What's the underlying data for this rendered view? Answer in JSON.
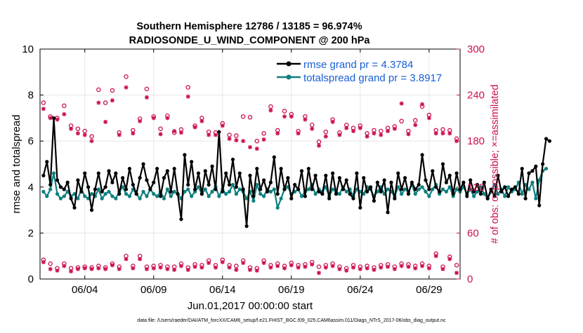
{
  "chart_data": {
    "type": "line",
    "title_line1": "Southern Hemisphere 12786 / 13185 = 96.974%",
    "title_line2": "RADIOSONDE_U_WIND_COMPONENT @ 200 hPa",
    "xlabel": "Jun.01,2017 00:00:00 start",
    "ylabel_left": "rmse and totalspread",
    "ylabel_right": "# of obs: o=possible; ×=assimilated",
    "footnote": "data file: /Users/raeder/DAI/ATM_forcXX/CAM6_setup/f.e21.FHIST_BGC.f09_025.CAM6assim.011/Diags_NTrS_2017-06/obs_diag_output.nc",
    "x_tick_labels": [
      "06/04",
      "06/09",
      "06/14",
      "06/19",
      "06/24",
      "06/29"
    ],
    "x_tick_values": [
      4,
      9,
      14,
      19,
      24,
      29
    ],
    "xlim": [
      0.75,
      31.25
    ],
    "left_axis": {
      "ylim": [
        0,
        10
      ],
      "ticks": [
        0,
        2,
        4,
        6,
        8,
        10
      ],
      "tick_labels": [
        "0",
        "2",
        "4",
        "6",
        "8",
        "10"
      ]
    },
    "right_axis": {
      "ylim": [
        0,
        300
      ],
      "ticks": [
        0,
        60,
        120,
        180,
        240,
        300
      ],
      "tick_labels": [
        "0",
        "60",
        "120",
        "180",
        "240",
        "300"
      ]
    },
    "colors": {
      "rmse": "#000000",
      "totalspread": "#0f7f7f",
      "obs": "#cc0f4f",
      "legend_text": "#1a5fd6",
      "axis": "#000000"
    },
    "legend": {
      "position": "top-right",
      "entries": [
        "rmse grand pr = 4.3784",
        "totalspread grand pr = 3.8917"
      ]
    },
    "series": [
      {
        "name": "rmse",
        "step": 0.25,
        "x0": 1.0,
        "values": [
          4.5,
          5.1,
          4.1,
          7.0,
          4.3,
          4.0,
          3.9,
          4.2,
          3.5,
          3.1,
          4.3,
          3.8,
          4.6,
          4.0,
          3.0,
          3.9,
          4.6,
          3.8,
          4.0,
          4.7,
          4.2,
          4.6,
          3.7,
          4.4,
          3.9,
          4.8,
          4.1,
          3.7,
          4.4,
          5.0,
          4.3,
          3.9,
          4.2,
          4.8,
          3.6,
          4.4,
          4.7,
          3.8,
          4.8,
          3.7,
          2.6,
          5.4,
          4.1,
          5.1,
          3.9,
          4.6,
          3.7,
          4.7,
          4.1,
          4.9,
          3.9,
          6.4,
          3.8,
          4.6,
          4.1,
          5.2,
          4.0,
          4.6,
          3.9,
          2.3,
          4.5,
          3.6,
          4.8,
          3.9,
          4.3,
          3.8,
          4.2,
          5.3,
          3.7,
          4.8,
          3.9,
          4.4,
          3.5,
          4.1,
          3.9,
          4.7,
          3.6,
          4.8,
          3.9,
          4.5,
          3.8,
          3.7,
          4.5,
          3.5,
          4.6,
          3.7,
          4.4,
          3.9,
          4.3,
          3.7,
          3.5,
          4.6,
          3.1,
          4.4,
          3.8,
          4.0,
          3.4,
          4.2,
          3.8,
          4.3,
          2.9,
          4.2,
          3.5,
          4.6,
          3.9,
          4.4,
          3.7,
          4.2,
          3.9,
          4.1,
          5.4,
          4.3,
          3.9,
          4.7,
          4.0,
          3.8,
          5.0,
          4.2,
          4.5,
          3.7,
          4.6,
          3.9,
          4.2,
          3.6,
          4.3,
          3.8,
          4.1,
          3.7,
          4.2,
          3.5,
          3.9,
          3.6,
          4.5,
          3.8,
          4.0,
          3.6,
          3.9,
          4.0,
          3.7,
          4.8,
          3.5,
          4.6,
          4.7,
          4.9,
          3.2,
          5.0,
          6.1,
          6.0
        ]
      },
      {
        "name": "totalspread",
        "step": 0.25,
        "x0": 1.0,
        "values": [
          3.8,
          3.6,
          3.9,
          4.6,
          3.7,
          3.5,
          3.6,
          3.8,
          3.6,
          3.7,
          3.5,
          3.9,
          3.6,
          3.5,
          3.7,
          3.6,
          3.9,
          3.5,
          3.7,
          3.8,
          3.6,
          3.5,
          3.8,
          4.0,
          3.7,
          3.6,
          3.9,
          3.7,
          3.5,
          3.8,
          3.6,
          3.9,
          3.7,
          3.6,
          3.8,
          3.5,
          3.9,
          3.6,
          3.8,
          3.7,
          3.5,
          3.8,
          3.9,
          3.6,
          3.8,
          4.0,
          3.7,
          3.9,
          3.6,
          3.8,
          4.0,
          3.6,
          3.9,
          3.7,
          3.8,
          4.1,
          3.7,
          3.9,
          3.8,
          3.5,
          3.8,
          3.4,
          4.1,
          3.7,
          3.6,
          3.9,
          3.8,
          3.9,
          3.1,
          3.5,
          3.9,
          4.0,
          3.7,
          3.8,
          3.9,
          3.6,
          3.8,
          3.9,
          4.1,
          3.7,
          3.9,
          3.8,
          4.0,
          3.6,
          3.9,
          3.8,
          3.7,
          4.0,
          3.8,
          3.9,
          3.6,
          3.9,
          3.8,
          3.7,
          4.0,
          3.9,
          3.6,
          3.8,
          4.0,
          3.7,
          3.9,
          3.8,
          3.6,
          4.0,
          3.7,
          3.9,
          3.8,
          4.1,
          3.7,
          3.9,
          4.0,
          3.8,
          3.6,
          3.9,
          4.1,
          3.7,
          3.9,
          3.8,
          4.0,
          3.6,
          3.9,
          3.8,
          4.0,
          3.7,
          3.9,
          3.6,
          3.8,
          4.0,
          3.7,
          3.5,
          3.8,
          4.1,
          3.7,
          3.9,
          3.6,
          4.0,
          3.8,
          3.9,
          4.2,
          3.7,
          4.1,
          3.9,
          4.2,
          3.5,
          4.3,
          4.7,
          4.8
        ]
      }
    ],
    "obs_possible": {
      "name": "possible (o)",
      "points": [
        [
          1.0,
          230
        ],
        [
          1.5,
          212
        ],
        [
          2.0,
          210
        ],
        [
          2.5,
          226
        ],
        [
          3.0,
          200
        ],
        [
          3.5,
          196
        ],
        [
          4.0,
          193
        ],
        [
          4.5,
          186
        ],
        [
          5.0,
          247
        ],
        [
          5.5,
          230
        ],
        [
          6.0,
          246
        ],
        [
          6.5,
          191
        ],
        [
          7.0,
          264
        ],
        [
          7.5,
          194
        ],
        [
          8.0,
          209
        ],
        [
          8.5,
          248
        ],
        [
          9.0,
          212
        ],
        [
          9.5,
          196
        ],
        [
          10.0,
          213
        ],
        [
          10.5,
          191
        ],
        [
          11.0,
          195
        ],
        [
          11.5,
          250
        ],
        [
          12.0,
          200
        ],
        [
          12.5,
          210
        ],
        [
          13.0,
          192
        ],
        [
          13.5,
          191
        ],
        [
          14.0,
          203
        ],
        [
          14.5,
          188
        ],
        [
          15.0,
          187
        ],
        [
          15.5,
          212
        ],
        [
          16.0,
          211
        ],
        [
          16.5,
          180
        ],
        [
          17.0,
          190
        ],
        [
          17.5,
          225
        ],
        [
          18.0,
          194
        ],
        [
          18.5,
          219
        ],
        [
          19.0,
          215
        ],
        [
          19.5,
          193
        ],
        [
          20.0,
          212
        ],
        [
          20.5,
          201
        ],
        [
          21.0,
          179
        ],
        [
          21.5,
          192
        ],
        [
          22.0,
          208
        ],
        [
          22.5,
          191
        ],
        [
          23.0,
          201
        ],
        [
          23.5,
          197
        ],
        [
          24.0,
          200
        ],
        [
          24.5,
          190
        ],
        [
          25.0,
          194
        ],
        [
          25.5,
          193
        ],
        [
          26.0,
          197
        ],
        [
          26.5,
          199
        ],
        [
          27.0,
          206
        ],
        [
          27.5,
          193
        ],
        [
          28.0,
          207
        ],
        [
          28.5,
          225
        ],
        [
          29.0,
          214
        ],
        [
          29.5,
          194
        ],
        [
          30.0,
          195
        ],
        [
          30.5,
          194
        ],
        [
          31.0,
          183
        ],
        [
          1.0,
          25
        ],
        [
          1.5,
          20
        ],
        [
          2.0,
          14
        ],
        [
          2.5,
          20
        ],
        [
          3.0,
          14
        ],
        [
          3.5,
          15
        ],
        [
          4.0,
          16
        ],
        [
          4.5,
          15
        ],
        [
          5.0,
          17
        ],
        [
          5.5,
          15
        ],
        [
          6.0,
          20
        ],
        [
          6.5,
          16
        ],
        [
          7.0,
          30
        ],
        [
          7.5,
          17
        ],
        [
          8.0,
          30
        ],
        [
          8.5,
          16
        ],
        [
          9.0,
          17
        ],
        [
          9.5,
          18
        ],
        [
          10.0,
          16
        ],
        [
          10.5,
          16
        ],
        [
          11.0,
          20
        ],
        [
          11.5,
          15
        ],
        [
          12.0,
          19
        ],
        [
          12.5,
          18
        ],
        [
          13.0,
          24
        ],
        [
          13.5,
          18
        ],
        [
          14.0,
          25
        ],
        [
          14.5,
          18
        ],
        [
          15.0,
          17
        ],
        [
          15.5,
          24
        ],
        [
          16.0,
          15
        ],
        [
          16.5,
          14
        ],
        [
          17.0,
          24
        ],
        [
          17.5,
          18
        ],
        [
          18.0,
          20
        ],
        [
          18.5,
          17
        ],
        [
          19.0,
          21
        ],
        [
          19.5,
          18
        ],
        [
          20.0,
          19
        ],
        [
          20.5,
          22
        ],
        [
          21.0,
          16
        ],
        [
          21.5,
          18
        ],
        [
          22.0,
          20
        ],
        [
          22.5,
          16
        ],
        [
          23.0,
          14
        ],
        [
          23.5,
          18
        ],
        [
          24.0,
          16
        ],
        [
          24.5,
          17
        ],
        [
          25.0,
          15
        ],
        [
          25.5,
          18
        ],
        [
          26.0,
          19
        ],
        [
          26.5,
          16
        ],
        [
          27.0,
          20
        ],
        [
          27.5,
          19
        ],
        [
          28.0,
          17
        ],
        [
          28.5,
          20
        ],
        [
          29.0,
          17
        ],
        [
          29.5,
          33
        ],
        [
          30.0,
          16
        ],
        [
          30.5,
          29
        ],
        [
          31.0,
          18
        ]
      ]
    },
    "obs_assimilated": {
      "name": "assimilated (×)",
      "points": [
        [
          1.0,
          222
        ],
        [
          1.5,
          210
        ],
        [
          2.0,
          208
        ],
        [
          2.5,
          215
        ],
        [
          3.0,
          196
        ],
        [
          3.5,
          190
        ],
        [
          4.0,
          188
        ],
        [
          4.5,
          180
        ],
        [
          5.0,
          230
        ],
        [
          5.5,
          205
        ],
        [
          6.0,
          233
        ],
        [
          6.5,
          188
        ],
        [
          7.0,
          250
        ],
        [
          7.5,
          190
        ],
        [
          8.0,
          206
        ],
        [
          8.5,
          237
        ],
        [
          9.0,
          210
        ],
        [
          9.5,
          189
        ],
        [
          10.0,
          210
        ],
        [
          10.5,
          193
        ],
        [
          11.0,
          191
        ],
        [
          11.5,
          238
        ],
        [
          12.0,
          198
        ],
        [
          12.5,
          206
        ],
        [
          13.0,
          188
        ],
        [
          13.5,
          188
        ],
        [
          14.0,
          200
        ],
        [
          14.5,
          183
        ],
        [
          15.0,
          181
        ],
        [
          15.5,
          180
        ],
        [
          16.0,
          172
        ],
        [
          16.5,
          170
        ],
        [
          17.0,
          182
        ],
        [
          17.5,
          220
        ],
        [
          18.0,
          190
        ],
        [
          18.5,
          212
        ],
        [
          19.0,
          212
        ],
        [
          19.5,
          190
        ],
        [
          20.0,
          208
        ],
        [
          20.5,
          196
        ],
        [
          21.0,
          174
        ],
        [
          21.5,
          186
        ],
        [
          22.0,
          205
        ],
        [
          22.5,
          188
        ],
        [
          23.0,
          197
        ],
        [
          23.5,
          193
        ],
        [
          24.0,
          197
        ],
        [
          24.5,
          186
        ],
        [
          25.0,
          190
        ],
        [
          25.5,
          188
        ],
        [
          26.0,
          193
        ],
        [
          26.5,
          196
        ],
        [
          27.0,
          229
        ],
        [
          27.5,
          189
        ],
        [
          28.0,
          201
        ],
        [
          28.5,
          228
        ],
        [
          29.0,
          210
        ],
        [
          29.5,
          190
        ],
        [
          30.0,
          190
        ],
        [
          30.5,
          190
        ],
        [
          31.0,
          180
        ],
        [
          1.0,
          22
        ],
        [
          1.5,
          13
        ],
        [
          2.0,
          11
        ],
        [
          2.5,
          17
        ],
        [
          3.0,
          10
        ],
        [
          3.5,
          13
        ],
        [
          4.0,
          14
        ],
        [
          4.5,
          13
        ],
        [
          5.0,
          14
        ],
        [
          5.5,
          13
        ],
        [
          6.0,
          18
        ],
        [
          6.5,
          13
        ],
        [
          7.0,
          26
        ],
        [
          7.5,
          14
        ],
        [
          8.0,
          26
        ],
        [
          8.5,
          13
        ],
        [
          9.0,
          14
        ],
        [
          9.5,
          15
        ],
        [
          10.0,
          13
        ],
        [
          10.5,
          12
        ],
        [
          11.0,
          17
        ],
        [
          11.5,
          12
        ],
        [
          12.0,
          16
        ],
        [
          12.5,
          15
        ],
        [
          13.0,
          21
        ],
        [
          13.5,
          15
        ],
        [
          14.0,
          22
        ],
        [
          14.5,
          15
        ],
        [
          15.0,
          12
        ],
        [
          15.5,
          21
        ],
        [
          16.0,
          12
        ],
        [
          16.5,
          11
        ],
        [
          17.0,
          21
        ],
        [
          17.5,
          15
        ],
        [
          18.0,
          17
        ],
        [
          18.5,
          14
        ],
        [
          19.0,
          18
        ],
        [
          19.5,
          15
        ],
        [
          20.0,
          16
        ],
        [
          20.5,
          19
        ],
        [
          21.0,
          8
        ],
        [
          21.5,
          15
        ],
        [
          22.0,
          17
        ],
        [
          22.5,
          13
        ],
        [
          23.0,
          11
        ],
        [
          23.5,
          15
        ],
        [
          24.0,
          13
        ],
        [
          24.5,
          14
        ],
        [
          25.0,
          12
        ],
        [
          25.5,
          15
        ],
        [
          26.0,
          16
        ],
        [
          26.5,
          13
        ],
        [
          27.0,
          17
        ],
        [
          27.5,
          16
        ],
        [
          28.0,
          14
        ],
        [
          28.5,
          17
        ],
        [
          29.0,
          14
        ],
        [
          29.5,
          30
        ],
        [
          30.0,
          13
        ],
        [
          30.5,
          26
        ],
        [
          31.0,
          8
        ]
      ]
    }
  }
}
